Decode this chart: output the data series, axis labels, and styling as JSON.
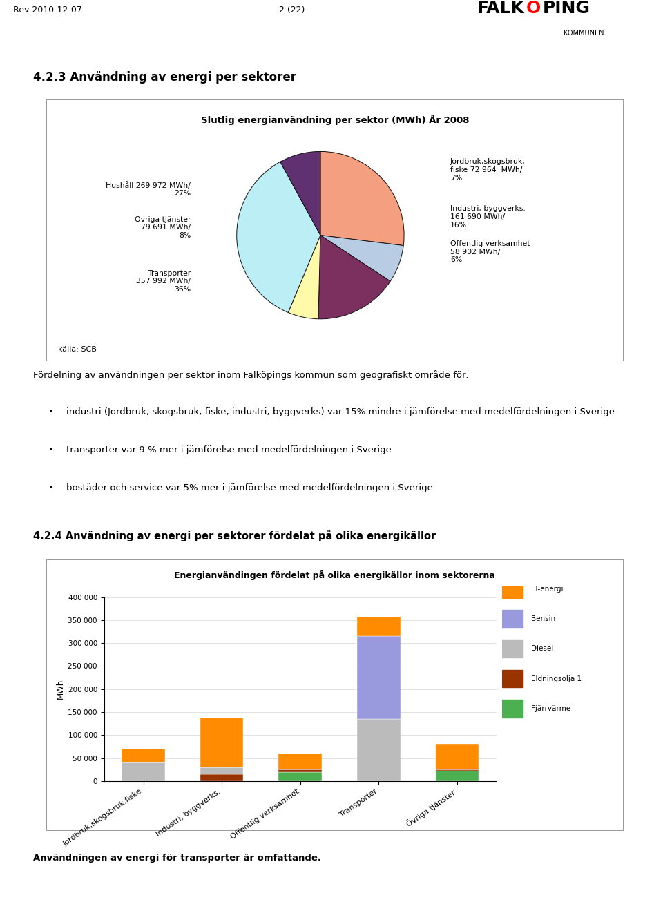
{
  "page_header_left": "Rev 2010-12-07",
  "page_header_center": "2 (22)",
  "section_title1": "4.2.3 Användning av energi per sektorer",
  "pie_chart_title": "Slutlig energianvändning per sektor (MWh) År 2008",
  "pie_slices": [
    {
      "label": "Hushåll 269 972 MWh/\n27%",
      "value": 269972,
      "color": "#F4A080"
    },
    {
      "label": "Jordbruk,skogsbruk,\nfiske 72 964  MWh/\n7%",
      "value": 72964,
      "color": "#B8CCE4"
    },
    {
      "label": "Industri, byggverks.\n161 690 MWh/\n16%",
      "value": 161690,
      "color": "#7B3060"
    },
    {
      "label": "Offentlig verksamhet\n58 902 MWh/\n6%",
      "value": 58902,
      "color": "#FFFAAA"
    },
    {
      "label": "Transporter\n357 992 MWh/\n36%",
      "value": 357992,
      "color": "#BBEFF5"
    },
    {
      "label": "Övriga tjänster\n79 691 MWh/\n8%",
      "value": 79691,
      "color": "#603070"
    }
  ],
  "pie_source": "källa: SCB",
  "body_lines": [
    "Fördelning av användningen per sektor inom Falköpings kommun som geografiskt område för:",
    "BULLET industri (Jordbruk, skogsbruk, fiske, industri, byggverks) var 15% mindre i jämförelse med medelfördelningen i Sverige",
    "BULLET transporter var 9 % mer i jämförelse med medelfördelningen i Sverige",
    "BULLET bostäder och service var 5% mer i jämförelse med medelfördelningen i Sverige"
  ],
  "section_title2": "4.2.4 Användning av energi per sektorer fördelat på olika energikällor",
  "bar_chart_title": "Energianvändingen fördelat på olika energikällor inom sektorerna",
  "bar_categories": [
    "Jordbruk,skogsbruk,fiske",
    "Industri, byggverks.",
    "Offentlig verksamhet",
    "Transporter",
    "Övriga tjänster"
  ],
  "bar_series": [
    {
      "name": "Fjärrvärme",
      "color": "#4CAF50",
      "values": [
        0,
        0,
        20000,
        0,
        22000
      ]
    },
    {
      "name": "Eldningsolja 1",
      "color": "#993300",
      "values": [
        0,
        15000,
        5000,
        0,
        3000
      ]
    },
    {
      "name": "Diesel",
      "color": "#BBBBBB",
      "values": [
        40000,
        15000,
        0,
        135000,
        0
      ]
    },
    {
      "name": "Bensin",
      "color": "#9999DD",
      "values": [
        0,
        0,
        0,
        180000,
        0
      ]
    },
    {
      "name": "El-energi",
      "color": "#FF8C00",
      "values": [
        30000,
        108000,
        35000,
        43000,
        56000
      ]
    }
  ],
  "bar_ylim": [
    0,
    400000
  ],
  "bar_yticks": [
    0,
    50000,
    100000,
    150000,
    200000,
    250000,
    300000,
    350000,
    400000
  ],
  "bar_ytick_labels": [
    "0",
    "50 000",
    "100 000",
    "150 000",
    "200 000",
    "250 000",
    "300 000",
    "350 000",
    "400 000"
  ],
  "bar_ylabel": "MWh",
  "footer_text": "Användningen av energi för transporter är omfattande.",
  "bg_color": "#FFFFFF"
}
